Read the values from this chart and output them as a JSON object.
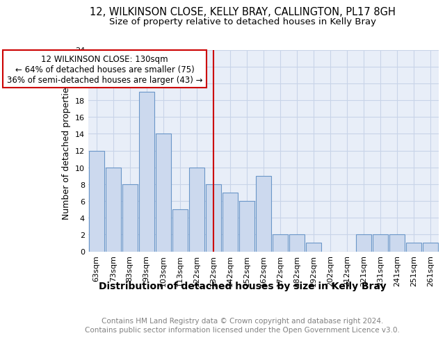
{
  "title": "12, WILKINSON CLOSE, KELLY BRAY, CALLINGTON, PL17 8GH",
  "subtitle": "Size of property relative to detached houses in Kelly Bray",
  "xlabel": "Distribution of detached houses by size in Kelly Bray",
  "ylabel": "Number of detached properties",
  "categories": [
    "63sqm",
    "73sqm",
    "83sqm",
    "93sqm",
    "103sqm",
    "113sqm",
    "122sqm",
    "132sqm",
    "142sqm",
    "152sqm",
    "162sqm",
    "172sqm",
    "182sqm",
    "192sqm",
    "202sqm",
    "212sqm",
    "221sqm",
    "231sqm",
    "241sqm",
    "251sqm",
    "261sqm"
  ],
  "values": [
    12,
    10,
    8,
    19,
    14,
    5,
    10,
    8,
    7,
    6,
    9,
    2,
    2,
    1,
    0,
    0,
    2,
    2,
    2,
    1,
    1
  ],
  "bar_color": "#ccd9ee",
  "bar_edge_color": "#6a96c8",
  "highlight_index": 7,
  "highlight_line_color": "#cc0000",
  "annotation_text": "12 WILKINSON CLOSE: 130sqm\n← 64% of detached houses are smaller (75)\n36% of semi-detached houses are larger (43) →",
  "annotation_box_color": "#cc0000",
  "ylim": [
    0,
    24
  ],
  "yticks": [
    0,
    2,
    4,
    6,
    8,
    10,
    12,
    14,
    16,
    18,
    20,
    22,
    24
  ],
  "grid_color": "#c8d4e8",
  "background_color": "#e8eef8",
  "footer_text": "Contains HM Land Registry data © Crown copyright and database right 2024.\nContains public sector information licensed under the Open Government Licence v3.0.",
  "title_fontsize": 10.5,
  "subtitle_fontsize": 9.5,
  "xlabel_fontsize": 10,
  "ylabel_fontsize": 9,
  "tick_fontsize": 8,
  "annotation_fontsize": 8.5,
  "footer_fontsize": 7.5
}
